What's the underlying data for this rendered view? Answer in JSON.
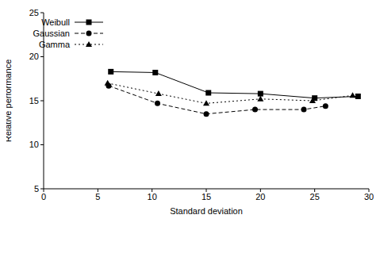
{
  "chart_data": {
    "type": "line",
    "x_label": "Standard deviation",
    "y_label": "Relative performance",
    "xlim": [
      0,
      30
    ],
    "ylim": [
      5,
      25
    ],
    "xticks": [
      0,
      5,
      10,
      15,
      20,
      25,
      30
    ],
    "yticks": [
      5,
      10,
      15,
      20,
      25
    ],
    "legend": "upper right",
    "grid": false,
    "series": [
      {
        "name": "Weibull",
        "color": "#000000",
        "marker": "square",
        "line_style": "solid",
        "x": [
          6.2,
          10.3,
          15.2,
          20,
          25,
          29
        ],
        "values": [
          18.3,
          18.2,
          15.9,
          15.8,
          15.3,
          15.5
        ]
      },
      {
        "name": "Gaussian",
        "color": "#000000",
        "marker": "circle",
        "line_style": "dashed",
        "x": [
          6,
          10.5,
          15,
          19.5,
          24,
          26
        ],
        "values": [
          16.7,
          14.7,
          13.5,
          14.0,
          14.0,
          14.4
        ]
      },
      {
        "name": "Gamma",
        "color": "#000000",
        "marker": "triangle",
        "line_style": "dotted",
        "x": [
          5.9,
          10.6,
          15,
          20,
          24.8,
          28.5
        ],
        "values": [
          17.0,
          15.8,
          14.7,
          15.2,
          15.0,
          15.6
        ]
      }
    ]
  }
}
